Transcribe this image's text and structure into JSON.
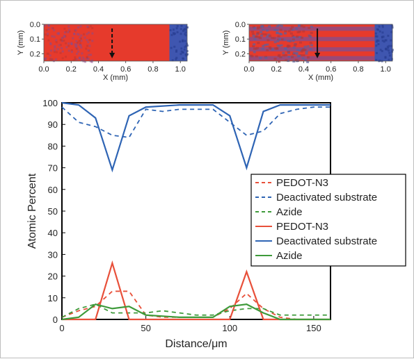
{
  "colors": {
    "pedot": "#e8503a",
    "deactivated": "#2e64b4",
    "azide": "#3e9a3a",
    "map_red": "#e63a2c",
    "map_blue": "#3f56b0"
  },
  "chart_data": [
    {
      "type": "heatmap",
      "id": "map-left",
      "xlabel": "X (mm)",
      "ylabel": "Y (mm)",
      "xticks": [
        "0.0",
        "0.2",
        "0.4",
        "0.6",
        "0.8",
        "1.0"
      ],
      "yticks": [
        "0.0",
        "0.1",
        "0.2"
      ],
      "xlim": [
        0,
        1.05
      ],
      "ylim": [
        0,
        0.25
      ],
      "arrow_style": "dashed",
      "arrow_x": 0.5
    },
    {
      "type": "heatmap",
      "id": "map-right",
      "xlabel": "X (mm)",
      "ylabel": "Y (mm)",
      "xticks": [
        "0.0",
        "0.2",
        "0.4",
        "0.6",
        "0.8",
        "1.0"
      ],
      "yticks": [
        "0.0",
        "0.1",
        "0.2"
      ],
      "xlim": [
        0,
        1.05
      ],
      "ylim": [
        0,
        0.25
      ],
      "arrow_style": "solid",
      "arrow_x": 0.5
    },
    {
      "type": "line",
      "id": "profile",
      "xlabel": "Distance/μm",
      "ylabel": "Atomic Percent",
      "xlim": [
        0,
        160
      ],
      "ylim": [
        0,
        100
      ],
      "xticks": [
        0,
        50,
        100,
        150
      ],
      "yticks": [
        0,
        10,
        20,
        30,
        40,
        50,
        60,
        70,
        80,
        90,
        100
      ],
      "legend_position": "right",
      "series": [
        {
          "name": "PEDOT-N3",
          "style": "dashed",
          "color_key": "pedot",
          "x": [
            0,
            10,
            20,
            30,
            40,
            50,
            60,
            70,
            80,
            90,
            100,
            110,
            120,
            130,
            140,
            150,
            160
          ],
          "y": [
            1,
            4,
            6,
            13,
            13,
            2,
            1,
            1,
            1,
            1,
            5,
            12,
            5,
            1,
            0,
            0,
            0
          ]
        },
        {
          "name": "Deactivated substrate",
          "style": "dashed",
          "color_key": "deactivated",
          "x": [
            0,
            10,
            20,
            30,
            40,
            50,
            60,
            70,
            80,
            90,
            100,
            110,
            120,
            130,
            140,
            150,
            160
          ],
          "y": [
            98,
            91,
            89,
            85,
            84,
            97,
            96,
            97,
            97,
            97,
            91,
            85,
            87,
            95,
            97,
            98,
            98
          ]
        },
        {
          "name": "Azide",
          "style": "dashed",
          "color_key": "azide",
          "x": [
            0,
            10,
            20,
            30,
            40,
            50,
            60,
            70,
            80,
            90,
            100,
            110,
            120,
            130,
            140,
            150,
            160
          ],
          "y": [
            1,
            5,
            7,
            3,
            3,
            3,
            4,
            3,
            2,
            2,
            4,
            5,
            5,
            2,
            2,
            2,
            2
          ]
        },
        {
          "name": "PEDOT-N3",
          "style": "solid",
          "color_key": "pedot",
          "x": [
            0,
            20,
            30,
            40,
            100,
            110,
            120,
            160
          ],
          "y": [
            0,
            0,
            26,
            0,
            0,
            22,
            0,
            0
          ]
        },
        {
          "name": "Deactivated substrate",
          "style": "solid",
          "color_key": "deactivated",
          "x": [
            0,
            10,
            20,
            30,
            40,
            50,
            70,
            90,
            100,
            110,
            120,
            130,
            160
          ],
          "y": [
            100,
            99,
            93,
            69,
            94,
            98,
            99,
            99,
            94,
            70,
            96,
            99,
            99
          ]
        },
        {
          "name": "Azide",
          "style": "solid",
          "color_key": "azide",
          "x": [
            0,
            10,
            20,
            30,
            40,
            50,
            70,
            90,
            100,
            110,
            120,
            130,
            160
          ],
          "y": [
            0,
            1,
            7,
            5,
            6,
            2,
            1,
            1,
            6,
            7,
            3,
            0,
            0
          ]
        }
      ]
    }
  ]
}
